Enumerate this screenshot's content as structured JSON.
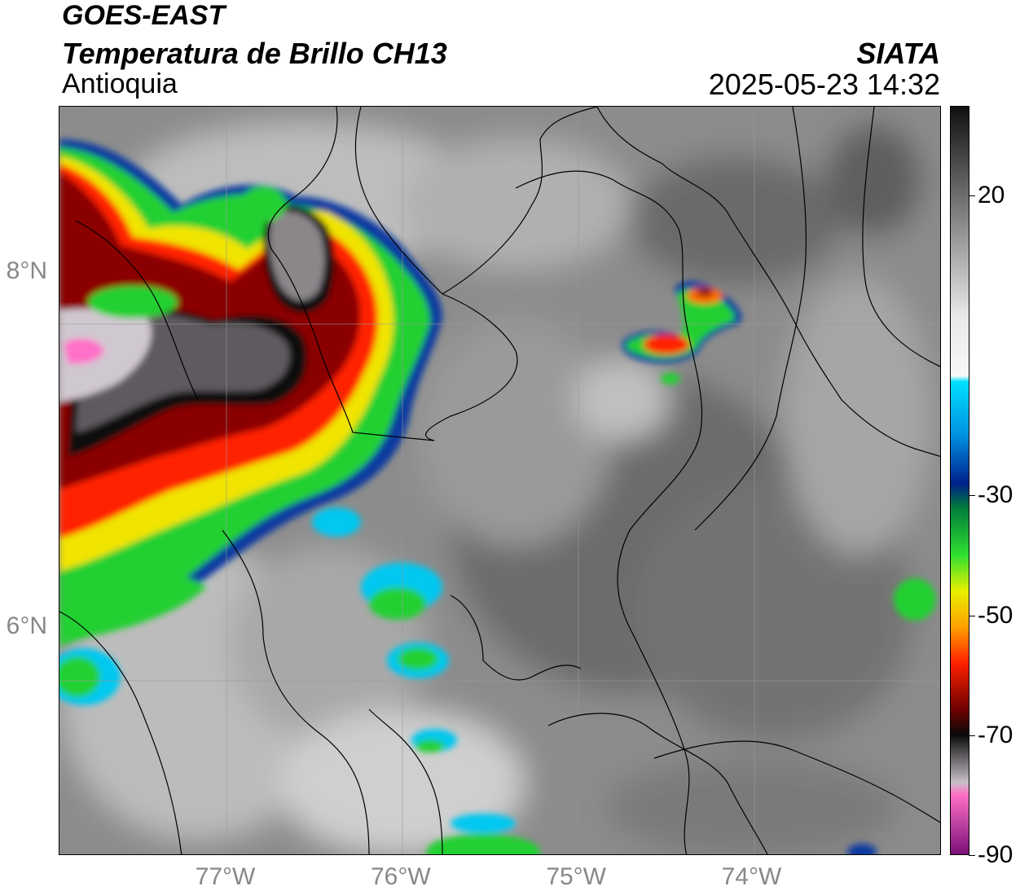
{
  "header": {
    "title_line1": "GOES-EAST",
    "title_line2": "Temperatura de Brillo CH13",
    "region": "Antioquia",
    "agency": "SIATA",
    "timestamp": "2025-05-23 14:32"
  },
  "map": {
    "lon_range": [
      -77.95,
      -72.92
    ],
    "lat_range": [
      4.71,
      8.93
    ],
    "lat_ticks": [
      {
        "value": 8,
        "label": "8°N"
      },
      {
        "value": 6,
        "label": "6°N"
      }
    ],
    "lon_ticks": [
      {
        "value": -77,
        "label": "77°W"
      },
      {
        "value": -76,
        "label": "76°W"
      },
      {
        "value": -75,
        "label": "75°W"
      },
      {
        "value": -74,
        "label": "74°W"
      }
    ],
    "grid": true
  },
  "colorbar": {
    "range": [
      -90,
      35
    ],
    "ticks": [
      {
        "value": 20,
        "label": "20"
      },
      {
        "value": -30,
        "label": "-30"
      },
      {
        "value": -50,
        "label": "-50"
      },
      {
        "value": -70,
        "label": "-70"
      },
      {
        "value": -90,
        "label": "-90"
      }
    ],
    "stops": [
      {
        "value": 35,
        "color": "#101010"
      },
      {
        "value": 20,
        "color": "#6e6e6e"
      },
      {
        "value": 0,
        "color": "#e8e8e8"
      },
      {
        "value": -10,
        "color": "#f8f8f8"
      },
      {
        "value": -11,
        "color": "#00e0ff"
      },
      {
        "value": -20,
        "color": "#0090e0"
      },
      {
        "value": -28,
        "color": "#00208c"
      },
      {
        "value": -32,
        "color": "#007a3c"
      },
      {
        "value": -40,
        "color": "#30e030"
      },
      {
        "value": -46,
        "color": "#e8f000"
      },
      {
        "value": -52,
        "color": "#ffa000"
      },
      {
        "value": -58,
        "color": "#ff2000"
      },
      {
        "value": -66,
        "color": "#6a0000"
      },
      {
        "value": -70,
        "color": "#0a0a0a"
      },
      {
        "value": -78,
        "color": "#c8c0c8"
      },
      {
        "value": -80,
        "color": "#ff70c8"
      },
      {
        "value": -90,
        "color": "#7a1078"
      }
    ]
  }
}
